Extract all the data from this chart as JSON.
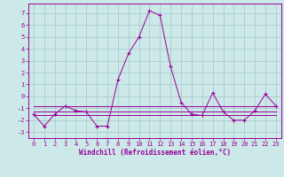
{
  "xlabel": "Windchill (Refroidissement éolien,°C)",
  "x": [
    0,
    1,
    2,
    3,
    4,
    5,
    6,
    7,
    8,
    9,
    10,
    11,
    12,
    13,
    14,
    15,
    16,
    17,
    18,
    19,
    20,
    21,
    22,
    23
  ],
  "y_main": [
    -1.5,
    -2.5,
    -1.5,
    -0.8,
    -1.2,
    -1.3,
    -2.5,
    -2.5,
    1.4,
    3.6,
    5.0,
    7.2,
    6.8,
    2.5,
    -0.5,
    -1.5,
    -1.6,
    0.3,
    -1.3,
    -2.0,
    -2.0,
    -1.2,
    0.2,
    -0.8
  ],
  "y_flat1": [
    -0.8,
    -0.8,
    -0.8,
    -0.8,
    -0.8,
    -0.8,
    -0.8,
    -0.8,
    -0.8,
    -0.8,
    -0.8,
    -0.8,
    -0.8,
    -0.8,
    -0.8,
    -0.8,
    -0.8,
    -0.8,
    -0.8,
    -0.8,
    -0.8,
    -0.8,
    -0.8,
    -0.8
  ],
  "y_flat2": [
    -1.3,
    -1.3,
    -1.3,
    -1.3,
    -1.3,
    -1.3,
    -1.3,
    -1.3,
    -1.3,
    -1.3,
    -1.3,
    -1.3,
    -1.3,
    -1.3,
    -1.3,
    -1.3,
    -1.3,
    -1.3,
    -1.3,
    -1.3,
    -1.3,
    -1.3,
    -1.3,
    -1.3
  ],
  "y_flat3": [
    -1.6,
    -1.6,
    -1.6,
    -1.6,
    -1.6,
    -1.6,
    -1.6,
    -1.6,
    -1.6,
    -1.6,
    -1.6,
    -1.6,
    -1.6,
    -1.6,
    -1.6,
    -1.6,
    -1.6,
    -1.6,
    -1.6,
    -1.6,
    -1.6,
    -1.6,
    -1.6,
    -1.6
  ],
  "line_color": "#990099",
  "bg_color": "#cce8e8",
  "grid_color": "#aacccc",
  "ylim": [
    -3.5,
    7.8
  ],
  "xlim": [
    -0.5,
    23.5
  ],
  "yticks": [
    -3,
    -2,
    -1,
    0,
    1,
    2,
    3,
    4,
    5,
    6,
    7
  ],
  "xticks": [
    0,
    1,
    2,
    3,
    4,
    5,
    6,
    7,
    8,
    9,
    10,
    11,
    12,
    13,
    14,
    15,
    16,
    17,
    18,
    19,
    20,
    21,
    22,
    23
  ],
  "tick_fontsize": 5.0,
  "xlabel_fontsize": 5.5
}
